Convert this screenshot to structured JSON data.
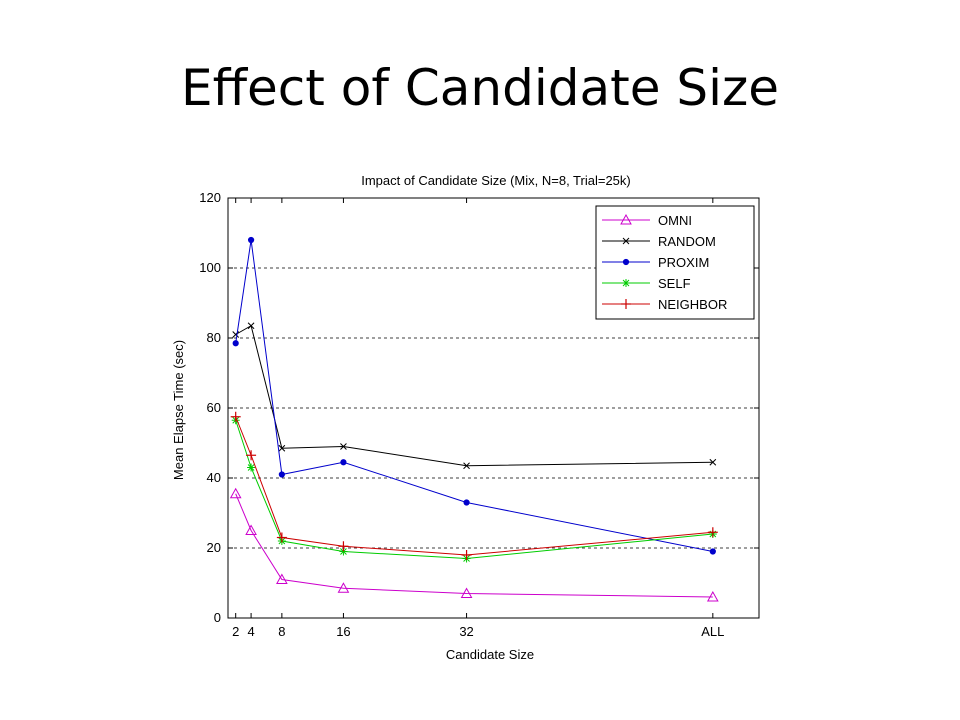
{
  "slide": {
    "title": "Effect of Candidate Size"
  },
  "chart_data": {
    "type": "line",
    "title": "Impact of Candidate Size (Mix, N=8, Trial=25k)",
    "xlabel": "Candidate Size",
    "ylabel": "Mean Elapse Time (sec)",
    "x_positions": [
      2,
      4,
      8,
      16,
      32,
      64
    ],
    "xticks": [
      {
        "value": 2,
        "label": "2"
      },
      {
        "value": 4,
        "label": "4"
      },
      {
        "value": 8,
        "label": "8"
      },
      {
        "value": 16,
        "label": "16"
      },
      {
        "value": 32,
        "label": "32"
      },
      {
        "value": 64,
        "label": "ALL"
      }
    ],
    "xlim": [
      1,
      70
    ],
    "ylim": [
      0,
      120
    ],
    "yticks": [
      0,
      20,
      40,
      60,
      80,
      100,
      120
    ],
    "grid": "horizontal dashed",
    "legend_position": "top-right",
    "series": [
      {
        "name": "OMNI",
        "color": "#cc00cc",
        "marker": "triangle",
        "values": [
          35.5,
          25,
          11,
          8.5,
          7,
          6
        ]
      },
      {
        "name": "RANDOM",
        "color": "#000000",
        "marker": "x",
        "values": [
          81,
          83.5,
          48.5,
          49,
          43.5,
          44.5
        ]
      },
      {
        "name": "PROXIM",
        "color": "#0000cc",
        "marker": "dot",
        "values": [
          78.5,
          108,
          41,
          44.5,
          33,
          19
        ]
      },
      {
        "name": "SELF",
        "color": "#00cc00",
        "marker": "star",
        "values": [
          56.5,
          43,
          22,
          19,
          17,
          24
        ]
      },
      {
        "name": "NEIGHBOR",
        "color": "#cc0000",
        "marker": "plus",
        "values": [
          57.5,
          46.5,
          23,
          20.5,
          18,
          24.5
        ]
      }
    ]
  }
}
